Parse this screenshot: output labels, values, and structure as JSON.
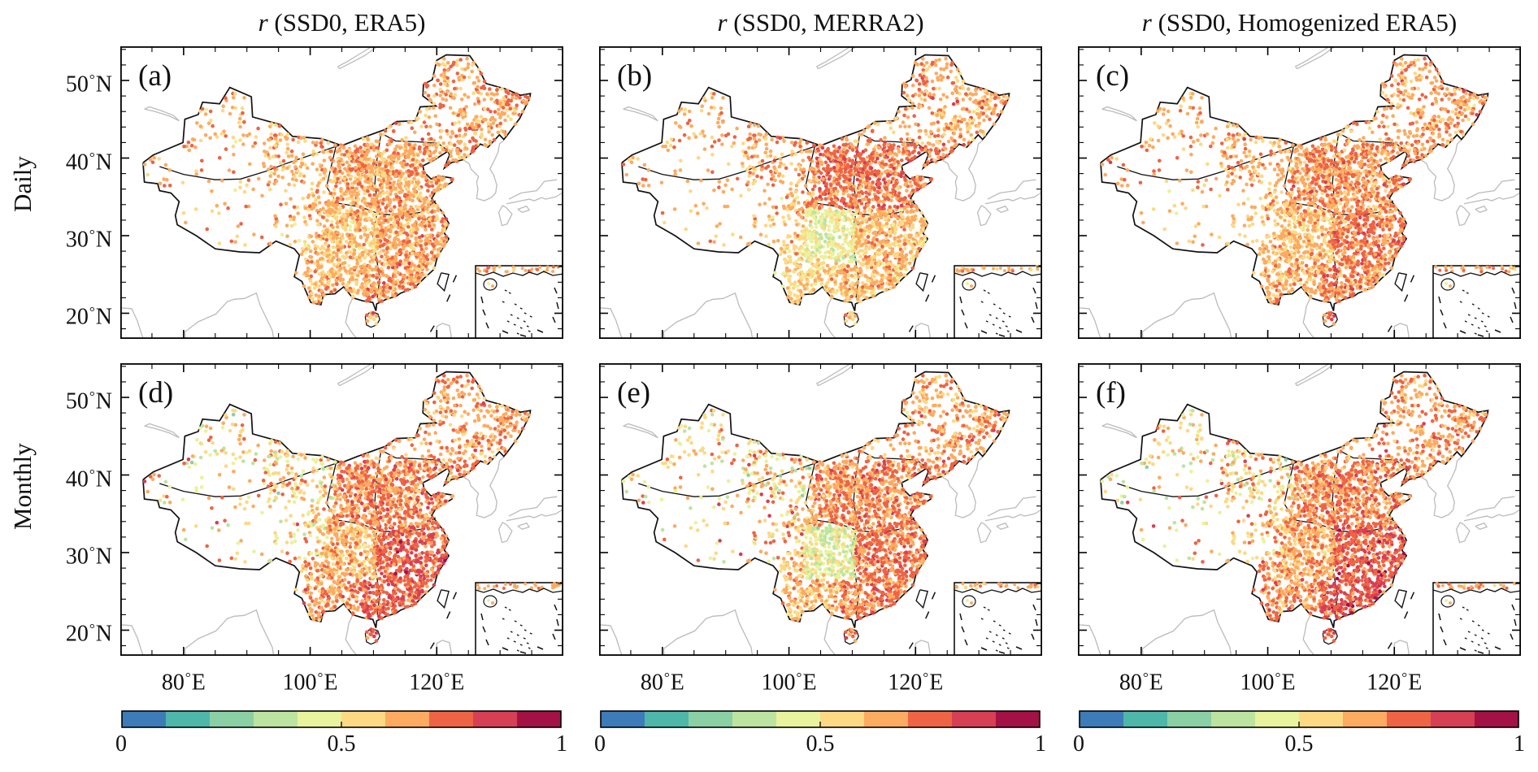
{
  "figure": {
    "column_titles": [
      {
        "italic": "r",
        "rest": " (SSD0, ERA5)"
      },
      {
        "italic": "r",
        "rest": " (SSD0, MERRA2)"
      },
      {
        "italic": "r",
        "rest": " (SSD0, Homogenized ERA5)"
      }
    ],
    "row_labels": [
      "Daily",
      "Monthly"
    ],
    "panel_labels": [
      "(a)",
      "(b)",
      "(c)",
      "(d)",
      "(e)",
      "(f)"
    ]
  },
  "axis": {
    "lat_tick_labels": [
      "50°N",
      "40°N",
      "30°N",
      "20°N"
    ],
    "lon_tick_labels": [
      "80°E",
      "100°E",
      "120°E"
    ]
  },
  "colorbar": {
    "tick_labels": [
      "0",
      "0.5",
      "1"
    ]
  },
  "chart_data": {
    "type": "scatter",
    "subtype": "station-map-scatter",
    "title": "Correlation coefficient r between station SSD0 and reanalysis sunshine over China",
    "rows": [
      "Daily",
      "Monthly"
    ],
    "datasets": [
      "ERA5",
      "MERRA2",
      "Homogenized ERA5"
    ],
    "map_extent": {
      "lon_range": [
        70,
        140
      ],
      "lat_range": [
        16.7,
        54.4
      ]
    },
    "lon_ticks": [
      80,
      100,
      120
    ],
    "lon_minor_tick_step": 5,
    "lat_ticks": [
      20,
      30,
      40,
      50
    ],
    "lat_minor_tick_step": 2,
    "grid": false,
    "station_count_approx": 2400,
    "colorbar": {
      "range": [
        0,
        1
      ],
      "ticks": [
        0,
        0.5,
        1
      ],
      "n_segments": 10,
      "colors": [
        "#3d7cb8",
        "#4fb6aa",
        "#8bcfa4",
        "#bce4a0",
        "#e9f29c",
        "#fdd984",
        "#fcab61",
        "#ee6444",
        "#d63f54",
        "#a31145"
      ]
    },
    "panels": [
      {
        "label": "(a)",
        "row": "Daily",
        "dataset": "ERA5",
        "regional_mean_r": {
          "sichuan": 0.6,
          "north_china": 0.66,
          "southeast": 0.66,
          "southwest": 0.62,
          "northeast": 0.66,
          "northwest": 0.64,
          "tibet": 0.62,
          "other": 0.65
        },
        "noise_sd": 0.085,
        "nw_noise_boost": 1.0
      },
      {
        "label": "(b)",
        "row": "Daily",
        "dataset": "MERRA2",
        "regional_mean_r": {
          "sichuan": 0.47,
          "north_china": 0.72,
          "southeast": 0.61,
          "southwest": 0.57,
          "northeast": 0.66,
          "northwest": 0.66,
          "tibet": 0.62,
          "other": 0.65
        },
        "noise_sd": 0.085,
        "nw_noise_boost": 1.0
      },
      {
        "label": "(c)",
        "row": "Daily",
        "dataset": "Homogenized ERA5",
        "regional_mean_r": {
          "sichuan": 0.62,
          "north_china": 0.68,
          "southeast": 0.7,
          "southwest": 0.64,
          "northeast": 0.66,
          "northwest": 0.65,
          "tibet": 0.62,
          "other": 0.65
        },
        "noise_sd": 0.085,
        "nw_noise_boost": 1.0
      },
      {
        "label": "(d)",
        "row": "Monthly",
        "dataset": "ERA5",
        "regional_mean_r": {
          "sichuan": 0.62,
          "north_china": 0.7,
          "southeast": 0.76,
          "southwest": 0.68,
          "northeast": 0.66,
          "northwest": 0.55,
          "tibet": 0.58,
          "other": 0.63
        },
        "noise_sd": 0.085,
        "nw_noise_boost": 1.8
      },
      {
        "label": "(e)",
        "row": "Monthly",
        "dataset": "MERRA2",
        "regional_mean_r": {
          "sichuan": 0.45,
          "north_china": 0.7,
          "southeast": 0.72,
          "southwest": 0.62,
          "northeast": 0.66,
          "northwest": 0.56,
          "tibet": 0.58,
          "other": 0.63
        },
        "noise_sd": 0.085,
        "nw_noise_boost": 1.8
      },
      {
        "label": "(f)",
        "row": "Monthly",
        "dataset": "Homogenized ERA5",
        "regional_mean_r": {
          "sichuan": 0.64,
          "north_china": 0.7,
          "southeast": 0.78,
          "southwest": 0.7,
          "northeast": 0.67,
          "northwest": 0.56,
          "tibet": 0.58,
          "other": 0.64
        },
        "noise_sd": 0.085,
        "nw_noise_boost": 1.8
      }
    ]
  }
}
